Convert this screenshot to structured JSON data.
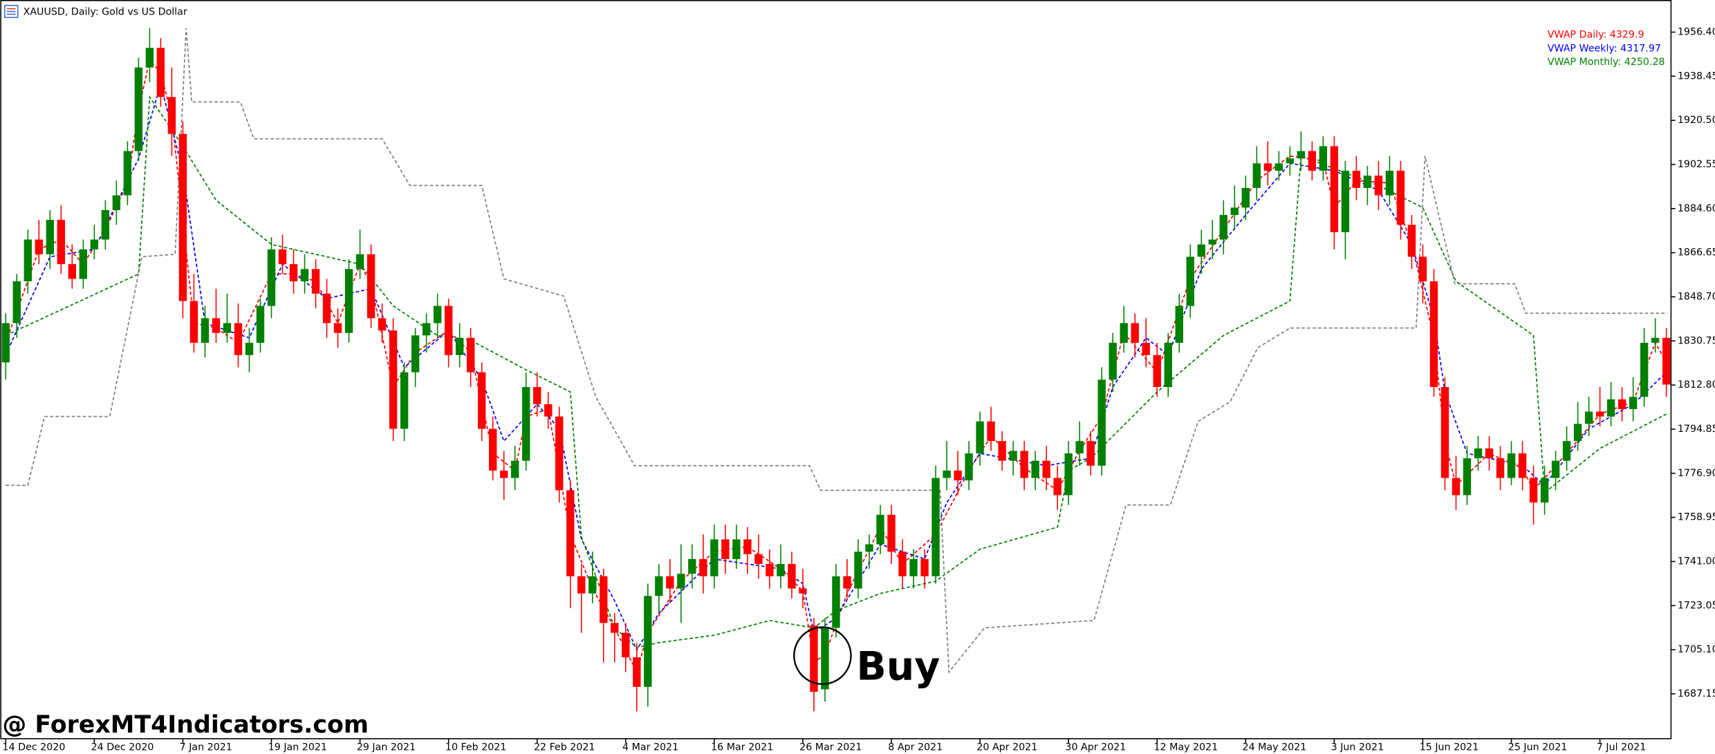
{
  "chart_data": {
    "type": "candlestick",
    "title": "XAUUSD, Daily:  Gold vs US Dollar",
    "watermark": "@ ForexMT4Indicators.com",
    "annotation": "Buy",
    "up_color": "#008000",
    "down_color": "#ff0000",
    "grid": false,
    "legend": "top-right",
    "ylim": [
      1668.9,
      1962.8
    ],
    "yticks": [
      {
        "value": 1956.4,
        "label": "1956.40"
      },
      1938.45,
      {
        "value": 1920.5,
        "label": "1920.50"
      },
      1902.55,
      {
        "value": 1884.6,
        "label": "1884.60"
      },
      1866.65,
      {
        "value": 1848.7,
        "label": "1848.70"
      },
      1830.75,
      {
        "value": 1812.8,
        "label": "1812.80"
      },
      1794.85,
      {
        "value": 1776.9,
        "label": "1776.90"
      },
      1758.95,
      {
        "value": 1741,
        "label": "1741.00"
      },
      1723.05,
      {
        "value": 1705.1,
        "label": "1705.10"
      },
      1687.15
    ],
    "xlim": [
      -0.5,
      150.5
    ],
    "xticks": [
      {
        "value": 0,
        "label": "14 Dec 2020"
      },
      {
        "value": 8,
        "label": "24 Dec 2020"
      },
      {
        "value": 16,
        "label": "7 Jan 2021"
      },
      {
        "value": 24,
        "label": "19 Jan 2021"
      },
      {
        "value": 32,
        "label": "29 Jan 2021"
      },
      {
        "value": 40,
        "label": "10 Feb 2021"
      },
      {
        "value": 48,
        "label": "22 Feb 2021"
      },
      {
        "value": 56,
        "label": "4 Mar 2021"
      },
      {
        "value": 64,
        "label": "16 Mar 2021"
      },
      {
        "value": 72,
        "label": "26 Mar 2021"
      },
      {
        "value": 80,
        "label": "8 Apr 2021"
      },
      {
        "value": 88,
        "label": "20 Apr 2021"
      },
      {
        "value": 96,
        "label": "30 Apr 2021"
      },
      {
        "value": 104,
        "label": "12 May 2021"
      },
      {
        "value": 112,
        "label": "24 May 2021"
      },
      {
        "value": 120,
        "label": "3 Jun 2021"
      },
      {
        "value": 128,
        "label": "15 Jun 2021"
      },
      {
        "value": 136,
        "label": "25 Jun 2021"
      },
      {
        "value": 144,
        "label": "7 Jul 2021"
      }
    ],
    "candles": [
      [
        1822,
        1842,
        1815,
        1838
      ],
      [
        1838,
        1858,
        1832,
        1855
      ],
      [
        1855,
        1876,
        1850,
        1872
      ],
      [
        1872,
        1880,
        1862,
        1866
      ],
      [
        1866,
        1884,
        1860,
        1880
      ],
      [
        1880,
        1886,
        1858,
        1862
      ],
      [
        1862,
        1870,
        1852,
        1856
      ],
      [
        1856,
        1872,
        1852,
        1868
      ],
      [
        1868,
        1878,
        1864,
        1872
      ],
      [
        1872,
        1888,
        1868,
        1884
      ],
      [
        1884,
        1896,
        1878,
        1890
      ],
      [
        1890,
        1912,
        1886,
        1908
      ],
      [
        1908,
        1946,
        1904,
        1942
      ],
      [
        1942,
        1958,
        1936,
        1950
      ],
      [
        1950,
        1954,
        1926,
        1930
      ],
      [
        1930,
        1942,
        1906,
        1915
      ],
      [
        1915,
        1920,
        1840,
        1847
      ],
      [
        1847,
        1858,
        1826,
        1830
      ],
      [
        1830,
        1845,
        1824,
        1840
      ],
      [
        1840,
        1852,
        1830,
        1834
      ],
      [
        1834,
        1850,
        1830,
        1838
      ],
      [
        1838,
        1846,
        1820,
        1825
      ],
      [
        1825,
        1836,
        1818,
        1830
      ],
      [
        1830,
        1848,
        1826,
        1845
      ],
      [
        1845,
        1873,
        1840,
        1868
      ],
      [
        1868,
        1874,
        1858,
        1862
      ],
      [
        1862,
        1868,
        1850,
        1855
      ],
      [
        1855,
        1866,
        1850,
        1860
      ],
      [
        1860,
        1864,
        1844,
        1850
      ],
      [
        1850,
        1856,
        1832,
        1838
      ],
      [
        1838,
        1844,
        1828,
        1834
      ],
      [
        1834,
        1864,
        1830,
        1860
      ],
      [
        1860,
        1876,
        1856,
        1866
      ],
      [
        1866,
        1870,
        1836,
        1840
      ],
      [
        1840,
        1846,
        1830,
        1835
      ],
      [
        1835,
        1840,
        1790,
        1795
      ],
      [
        1795,
        1822,
        1790,
        1818
      ],
      [
        1818,
        1836,
        1812,
        1833
      ],
      [
        1833,
        1842,
        1826,
        1838
      ],
      [
        1838,
        1850,
        1832,
        1845
      ],
      [
        1845,
        1848,
        1820,
        1825
      ],
      [
        1825,
        1838,
        1820,
        1832
      ],
      [
        1832,
        1836,
        1812,
        1818
      ],
      [
        1818,
        1822,
        1790,
        1795
      ],
      [
        1795,
        1800,
        1774,
        1778
      ],
      [
        1778,
        1786,
        1766,
        1775
      ],
      [
        1775,
        1788,
        1770,
        1782
      ],
      [
        1782,
        1818,
        1778,
        1812
      ],
      [
        1812,
        1818,
        1800,
        1805
      ],
      [
        1805,
        1810,
        1795,
        1800
      ],
      [
        1800,
        1804,
        1765,
        1770
      ],
      [
        1770,
        1774,
        1722,
        1735
      ],
      [
        1735,
        1740,
        1712,
        1728
      ],
      [
        1728,
        1745,
        1724,
        1735
      ],
      [
        1735,
        1738,
        1700,
        1716
      ],
      [
        1716,
        1720,
        1700,
        1712
      ],
      [
        1712,
        1716,
        1696,
        1702
      ],
      [
        1702,
        1708,
        1680,
        1690
      ],
      [
        1690,
        1732,
        1682,
        1727
      ],
      [
        1727,
        1740,
        1720,
        1735
      ],
      [
        1735,
        1742,
        1724,
        1730
      ],
      [
        1730,
        1748,
        1716,
        1736
      ],
      [
        1736,
        1748,
        1730,
        1742
      ],
      [
        1742,
        1752,
        1728,
        1735
      ],
      [
        1735,
        1756,
        1730,
        1750
      ],
      [
        1750,
        1756,
        1736,
        1742
      ],
      [
        1742,
        1756,
        1738,
        1750
      ],
      [
        1750,
        1755,
        1736,
        1744
      ],
      [
        1744,
        1752,
        1734,
        1740
      ],
      [
        1740,
        1746,
        1730,
        1735
      ],
      [
        1735,
        1748,
        1730,
        1740
      ],
      [
        1740,
        1745,
        1726,
        1730
      ],
      [
        1730,
        1738,
        1722,
        1728
      ],
      [
        1715,
        1718,
        1680,
        1688
      ],
      [
        1689,
        1718,
        1684,
        1714
      ],
      [
        1714,
        1740,
        1710,
        1735
      ],
      [
        1735,
        1742,
        1726,
        1730
      ],
      [
        1730,
        1750,
        1726,
        1745
      ],
      [
        1745,
        1752,
        1738,
        1748
      ],
      [
        1748,
        1764,
        1744,
        1760
      ],
      [
        1760,
        1764,
        1740,
        1745
      ],
      [
        1745,
        1750,
        1730,
        1735
      ],
      [
        1735,
        1746,
        1730,
        1742
      ],
      [
        1742,
        1746,
        1730,
        1735
      ],
      [
        1735,
        1780,
        1732,
        1775
      ],
      [
        1775,
        1790,
        1770,
        1778
      ],
      [
        1778,
        1786,
        1768,
        1774
      ],
      [
        1774,
        1790,
        1770,
        1785
      ],
      [
        1785,
        1802,
        1780,
        1798
      ],
      [
        1798,
        1804,
        1786,
        1790
      ],
      [
        1790,
        1794,
        1778,
        1782
      ],
      [
        1782,
        1790,
        1776,
        1786
      ],
      [
        1786,
        1790,
        1770,
        1775
      ],
      [
        1775,
        1786,
        1770,
        1782
      ],
      [
        1782,
        1788,
        1770,
        1775
      ],
      [
        1775,
        1780,
        1762,
        1768
      ],
      [
        1768,
        1790,
        1764,
        1785
      ],
      [
        1785,
        1798,
        1780,
        1790
      ],
      [
        1790,
        1794,
        1776,
        1780
      ],
      [
        1780,
        1820,
        1776,
        1815
      ],
      [
        1815,
        1834,
        1810,
        1830
      ],
      [
        1830,
        1845,
        1826,
        1838
      ],
      [
        1838,
        1842,
        1824,
        1830
      ],
      [
        1830,
        1840,
        1820,
        1825
      ],
      [
        1825,
        1830,
        1808,
        1812
      ],
      [
        1812,
        1834,
        1808,
        1830
      ],
      [
        1830,
        1850,
        1826,
        1845
      ],
      [
        1845,
        1870,
        1840,
        1865
      ],
      [
        1865,
        1876,
        1858,
        1870
      ],
      [
        1870,
        1880,
        1864,
        1872
      ],
      [
        1872,
        1888,
        1866,
        1882
      ],
      [
        1882,
        1894,
        1876,
        1885
      ],
      [
        1885,
        1898,
        1880,
        1893
      ],
      [
        1893,
        1910,
        1888,
        1903
      ],
      [
        1903,
        1912,
        1894,
        1900
      ],
      [
        1900,
        1908,
        1896,
        1903
      ],
      [
        1903,
        1910,
        1898,
        1905
      ],
      [
        1905,
        1916,
        1900,
        1908
      ],
      [
        1908,
        1912,
        1896,
        1900
      ],
      [
        1900,
        1914,
        1896,
        1910
      ],
      [
        1910,
        1914,
        1868,
        1875
      ],
      [
        1875,
        1904,
        1864,
        1900
      ],
      [
        1900,
        1906,
        1888,
        1893
      ],
      [
        1893,
        1902,
        1886,
        1898
      ],
      [
        1898,
        1904,
        1884,
        1890
      ],
      [
        1890,
        1906,
        1886,
        1900
      ],
      [
        1900,
        1904,
        1872,
        1878
      ],
      [
        1878,
        1882,
        1860,
        1865
      ],
      [
        1865,
        1870,
        1846,
        1855
      ],
      [
        1855,
        1860,
        1808,
        1812
      ],
      [
        1812,
        1816,
        1770,
        1775
      ],
      [
        1775,
        1784,
        1762,
        1768
      ],
      [
        1768,
        1788,
        1764,
        1783
      ],
      [
        1783,
        1792,
        1778,
        1787
      ],
      [
        1787,
        1792,
        1778,
        1783
      ],
      [
        1783,
        1788,
        1770,
        1775
      ],
      [
        1775,
        1790,
        1772,
        1785
      ],
      [
        1785,
        1790,
        1770,
        1775
      ],
      [
        1775,
        1780,
        1756,
        1765
      ],
      [
        1765,
        1780,
        1760,
        1775
      ],
      [
        1775,
        1786,
        1770,
        1782
      ],
      [
        1782,
        1796,
        1778,
        1790
      ],
      [
        1790,
        1806,
        1786,
        1797
      ],
      [
        1797,
        1808,
        1792,
        1802
      ],
      [
        1802,
        1812,
        1796,
        1800
      ],
      [
        1800,
        1814,
        1796,
        1807
      ],
      [
        1807,
        1812,
        1798,
        1803
      ],
      [
        1803,
        1816,
        1798,
        1808
      ],
      [
        1808,
        1836,
        1804,
        1830
      ],
      [
        1830,
        1840,
        1826,
        1832
      ],
      [
        1832,
        1836,
        1808,
        1813
      ]
    ],
    "series": [
      {
        "name": "VWAP Daily: 4329.9",
        "color": "#ff0000",
        "x": [
          0,
          3,
          5,
          7,
          9,
          11,
          12,
          13,
          14,
          15,
          16,
          17,
          19,
          21,
          24,
          26,
          28,
          30,
          32,
          33,
          35,
          37,
          40,
          42,
          44,
          46,
          47,
          49,
          51,
          53,
          55,
          57,
          58,
          61,
          64,
          67,
          70,
          72,
          73,
          74,
          76,
          79,
          81,
          84,
          87,
          89,
          92,
          95,
          97,
          99,
          101,
          104,
          107,
          110,
          113,
          116,
          119,
          120,
          122,
          125,
          127,
          129,
          130,
          131,
          134,
          137,
          138,
          141,
          144,
          147,
          149,
          150
        ],
        "values": [
          1830,
          1868,
          1872,
          1862,
          1876,
          1895,
          1925,
          1945,
          1940,
          1922,
          1880,
          1838,
          1836,
          1830,
          1858,
          1858,
          1855,
          1838,
          1862,
          1854,
          1812,
          1826,
          1835,
          1826,
          1785,
          1778,
          1800,
          1803,
          1752,
          1730,
          1714,
          1696,
          1712,
          1733,
          1745,
          1747,
          1738,
          1729,
          1700,
          1703,
          1728,
          1755,
          1740,
          1752,
          1778,
          1792,
          1779,
          1770,
          1786,
          1800,
          1834,
          1818,
          1856,
          1876,
          1896,
          1906,
          1904,
          1885,
          1896,
          1895,
          1870,
          1832,
          1790,
          1772,
          1785,
          1779,
          1770,
          1785,
          1801,
          1806,
          1830,
          1822
        ]
      },
      {
        "name": "VWAP Weekly: 4317.97",
        "color": "#0000ff",
        "x": [
          0,
          4,
          8,
          12,
          14,
          16,
          18,
          22,
          25,
          29,
          33,
          36,
          40,
          43,
          45,
          48,
          50,
          52,
          55,
          57,
          59,
          64,
          70,
          72,
          73,
          75,
          79,
          83,
          85,
          88,
          94,
          98,
          100,
          103,
          105,
          108,
          112,
          116,
          120,
          124,
          127,
          129,
          130,
          132,
          137,
          139,
          143,
          147,
          150
        ],
        "values": [
          1825,
          1865,
          1868,
          1905,
          1935,
          1900,
          1838,
          1832,
          1862,
          1848,
          1852,
          1820,
          1835,
          1815,
          1790,
          1805,
          1795,
          1750,
          1725,
          1705,
          1720,
          1742,
          1738,
          1732,
          1712,
          1718,
          1748,
          1742,
          1765,
          1785,
          1780,
          1783,
          1812,
          1832,
          1825,
          1860,
          1882,
          1903,
          1900,
          1892,
          1870,
          1840,
          1810,
          1785,
          1780,
          1772,
          1795,
          1805,
          1818
        ]
      },
      {
        "name": "VWAP Monthly: 4250.28",
        "color": "#008000",
        "x": [
          0,
          12,
          13,
          16,
          19,
          24,
          32,
          35,
          39,
          42,
          47,
          51,
          52,
          55,
          57,
          59,
          64,
          69,
          73,
          75,
          79,
          84,
          88,
          95,
          96,
          98,
          104,
          110,
          116,
          117,
          124,
          128,
          131,
          138,
          139,
          144,
          150
        ],
        "values": [
          1833,
          1858,
          1930,
          1910,
          1888,
          1870,
          1862,
          1845,
          1833,
          1831,
          1819,
          1810,
          1751,
          1714,
          1706,
          1708,
          1711,
          1717,
          1714,
          1721,
          1728,
          1733,
          1746,
          1755,
          1778,
          1783,
          1810,
          1833,
          1847,
          1906,
          1894,
          1885,
          1855,
          1833,
          1769,
          1787,
          1801
        ]
      },
      {
        "color": "#808080",
        "x": [
          0,
          2,
          3.5,
          9.4,
          12.3,
          15.3,
          16.3,
          16.8,
          21.2,
          22.4,
          34,
          36.5,
          43,
          45,
          50.4,
          53.3,
          56.8,
          72.6,
          73.6,
          84.4,
          85.2,
          88.4,
          98.3,
          101.2,
          105.2,
          107.7,
          110.6,
          113.1,
          116,
          127.4,
          128.2,
          130.9,
          136.3,
          137.3,
          150.1
        ],
        "values": [
          1772,
          1772,
          1800,
          1800,
          1865,
          1866,
          1958,
          1928,
          1928,
          1913,
          1913,
          1894,
          1894,
          1856,
          1849,
          1808,
          1780,
          1780,
          1770,
          1770,
          1696,
          1714,
          1717,
          1764,
          1764,
          1798,
          1806,
          1828,
          1836,
          1836,
          1906,
          1854,
          1854,
          1842,
          1842
        ]
      }
    ]
  }
}
